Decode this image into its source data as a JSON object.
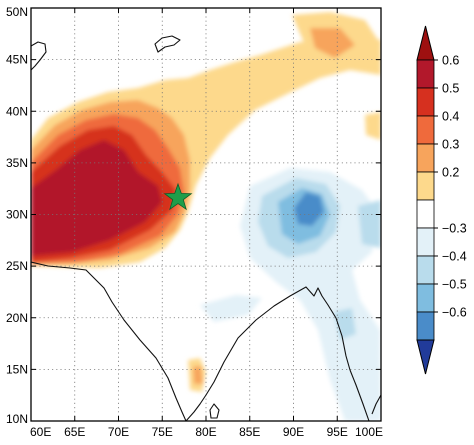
{
  "map": {
    "lon_range": [
      60,
      100
    ],
    "lat_range": [
      10,
      50
    ],
    "x_ticks": [
      {
        "value": 60,
        "label": "60E"
      },
      {
        "value": 65,
        "label": "65E"
      },
      {
        "value": 70,
        "label": "70E"
      },
      {
        "value": 75,
        "label": "75E"
      },
      {
        "value": 80,
        "label": "80E"
      },
      {
        "value": 85,
        "label": "85E"
      },
      {
        "value": 90,
        "label": "90E"
      },
      {
        "value": 95,
        "label": "95E"
      },
      {
        "value": 100,
        "label": "100E"
      }
    ],
    "y_ticks": [
      {
        "value": 10,
        "label": "10N"
      },
      {
        "value": 15,
        "label": "15N"
      },
      {
        "value": 20,
        "label": "20N"
      },
      {
        "value": 25,
        "label": "25N"
      },
      {
        "value": 30,
        "label": "30N"
      },
      {
        "value": 35,
        "label": "35N"
      },
      {
        "value": 40,
        "label": "40N"
      },
      {
        "value": 45,
        "label": "45N"
      },
      {
        "value": 50,
        "label": "50N"
      }
    ],
    "grid": "dotted",
    "marker": {
      "shape": "star",
      "color": "#1e9e4a",
      "lon": 76.8,
      "lat": 31.6
    },
    "features": [
      {
        "name": "correlation-max-northwest",
        "lon": 68,
        "lat": 30,
        "value": 0.6
      },
      {
        "name": "correlation-min-tibet",
        "lon": 91.5,
        "lat": 30.5,
        "value": -0.6
      }
    ]
  },
  "colorbar": {
    "levels": [
      {
        "label": "0.6",
        "color": "#b2182b"
      },
      {
        "label": "0.5",
        "color": "#d6301f"
      },
      {
        "label": "0.4",
        "color": "#ef6a3c"
      },
      {
        "label": "0.3",
        "color": "#f7a45c"
      },
      {
        "label": "0.2",
        "color": "#fdd98c"
      },
      {
        "label": "",
        "color": "#ffffff"
      },
      {
        "label": "−0.3",
        "color": "#e3f1f8"
      },
      {
        "label": "−0.4",
        "color": "#b9dcec"
      },
      {
        "label": "−0.5",
        "color": "#7fbde0"
      },
      {
        "label": "−0.6",
        "color": "#4a8cc9"
      }
    ],
    "top_color": "#9e1010",
    "bottom_color": "#213b9a"
  }
}
